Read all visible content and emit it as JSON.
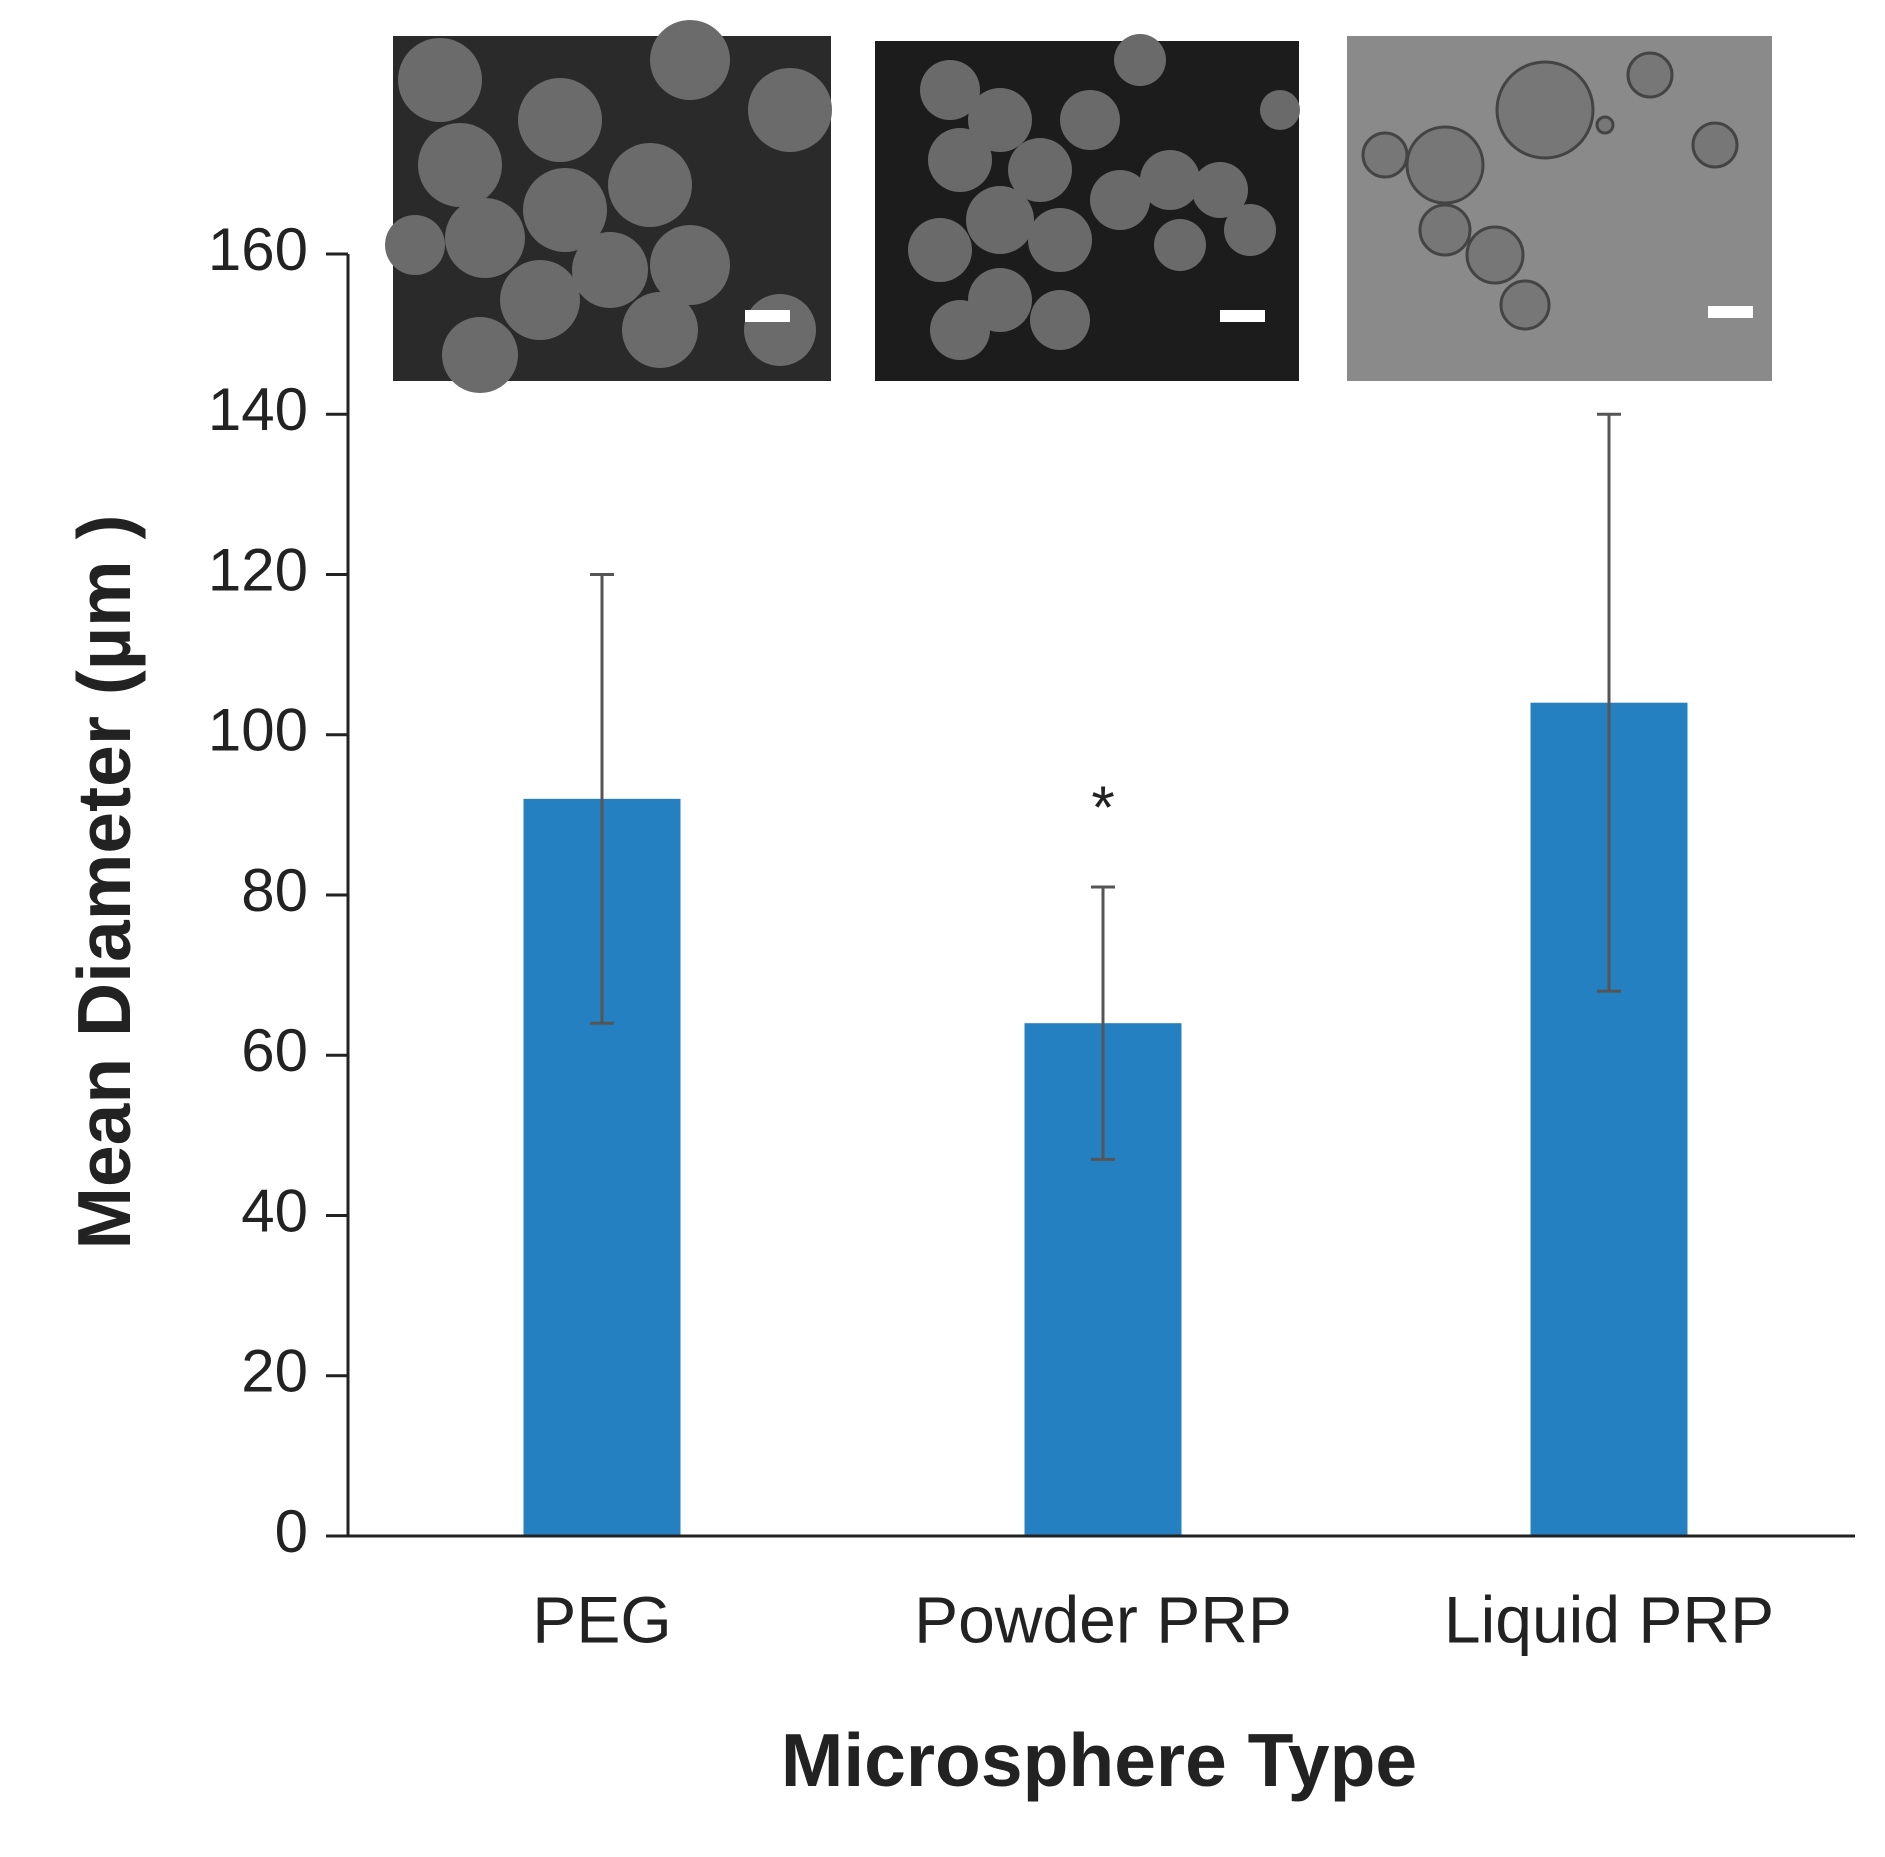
{
  "chart_data": {
    "type": "bar",
    "xlabel": "Microsphere Type",
    "ylabel": "Mean Diameter (µm )",
    "categories": [
      "PEG",
      "Powder PRP",
      "Liquid PRP"
    ],
    "values": [
      92,
      64,
      104
    ],
    "errors": [
      28,
      17,
      36
    ],
    "color": "#2580c1",
    "error_color": "#555555",
    "ylim": [
      0,
      160
    ],
    "yticks": [
      0,
      20,
      40,
      60,
      80,
      100,
      120,
      140,
      160
    ],
    "grid": false,
    "annotations": [
      {
        "text": "*",
        "category": 1
      }
    ]
  }
}
